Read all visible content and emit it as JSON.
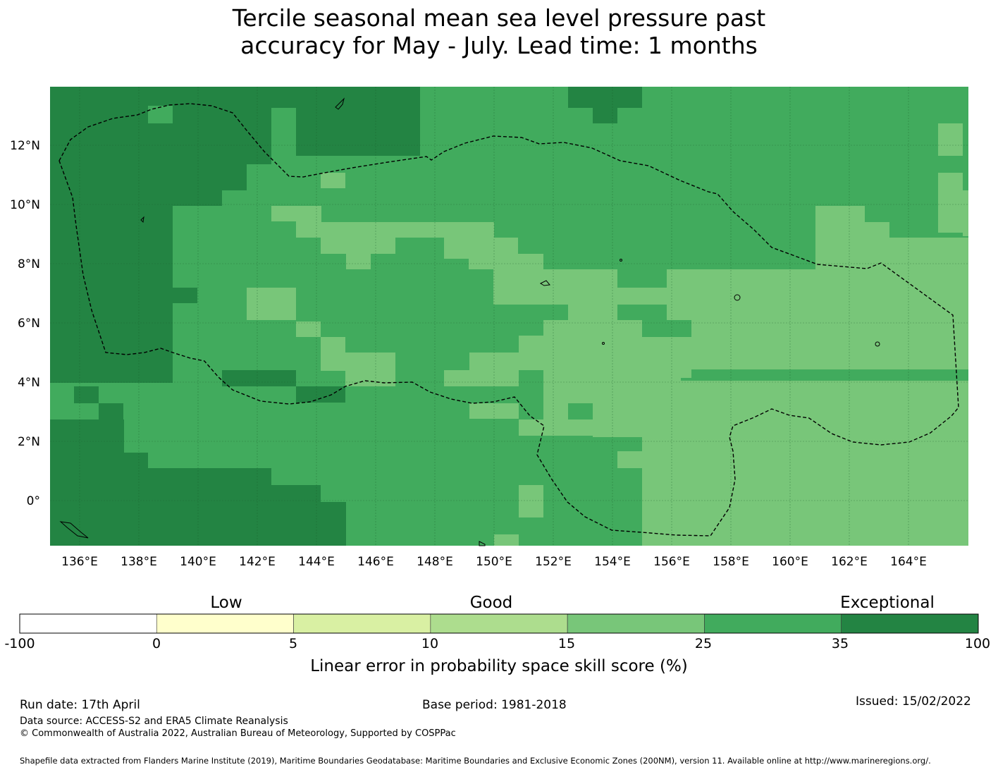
{
  "title": {
    "line1": "Tercile seasonal mean sea level pressure past",
    "line2": "accuracy for May - July. Lead time: 1 months"
  },
  "map": {
    "lon_ticks": [
      "136°E",
      "138°E",
      "140°E",
      "142°E",
      "144°E",
      "146°E",
      "148°E",
      "150°E",
      "152°E",
      "154°E",
      "156°E",
      "158°E",
      "160°E",
      "162°E",
      "164°E"
    ],
    "lat_ticks": [
      "12°N",
      "10°N",
      "8°N",
      "6°N",
      "4°N",
      "2°N",
      "0°"
    ],
    "grid_color": "#1a5a2a",
    "boundary_style": "dashed"
  },
  "colorbar": {
    "categories": [
      "Low",
      "Good",
      "Exceptional"
    ],
    "ticks": [
      "-100",
      "0",
      "5",
      "10",
      "15",
      "25",
      "35",
      "100"
    ],
    "colors": [
      "#ffffff",
      "#ffffcc",
      "#d9f0a3",
      "#addd8e",
      "#78c679",
      "#41ab5d",
      "#238443"
    ],
    "label": "Linear error in probability space skill score (%)"
  },
  "footer": {
    "run_date": "Run date: 17th April",
    "base_period": "Base period: 1981-2018",
    "issued": "Issued: 15/02/2022",
    "data_source": "Data source: ACCESS-S2 and ERA5 Climate Reanalysis",
    "copyright": "© Commonwealth of Australia 2022, Australian Bureau of Meteorology, Supported by COSPPac",
    "shapefile": "Shapefile data extracted from Flanders Marine Institute (2019), Maritime Boundaries Geodatabase: Maritime Boundaries and Exclusive Economic Zones (200NM), version 11. Available online at http://www.marineregions.org/."
  }
}
